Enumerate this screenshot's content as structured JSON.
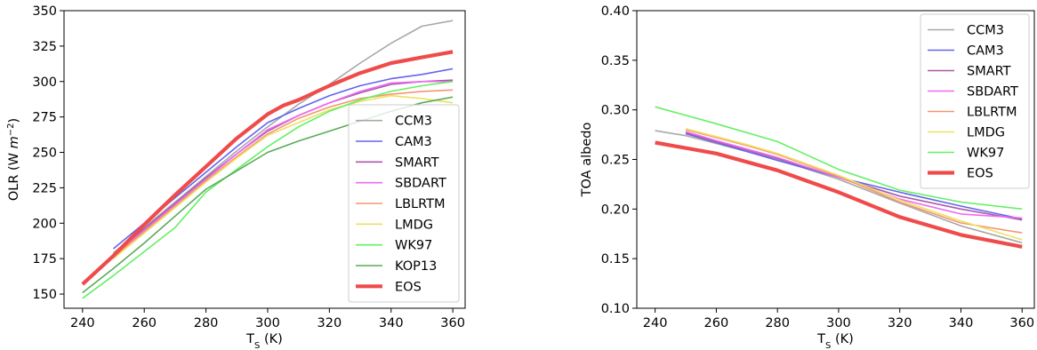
{
  "chart_data": [
    {
      "type": "line",
      "xlabel": "T",
      "xlabel_sub": "S",
      "xlabel_unit": " (K)",
      "ylabel": "OLR (W ",
      "ylabel_var": "m",
      "ylabel_sup": "−2",
      "ylabel_end": ")",
      "xlim": [
        234,
        364
      ],
      "ylim": [
        140,
        350
      ],
      "xticks": [
        240,
        260,
        280,
        300,
        320,
        340,
        360
      ],
      "yticks": [
        150,
        175,
        200,
        225,
        250,
        275,
        300,
        325,
        350
      ],
      "legend_position": "lower-right",
      "series": [
        {
          "name": "CCM3",
          "color": "#a8a8a8",
          "width": 1.6,
          "x": [
            250,
            260,
            270,
            280,
            290,
            300,
            310,
            320,
            330,
            340,
            350,
            360
          ],
          "y": [
            179,
            197,
            215,
            233,
            251,
            268,
            284,
            298,
            313,
            327,
            339,
            343
          ]
        },
        {
          "name": "CAM3",
          "color": "#6464f0",
          "width": 1.6,
          "x": [
            250,
            260,
            270,
            280,
            290,
            300,
            310,
            320,
            330,
            340,
            350,
            360
          ],
          "y": [
            182,
            200,
            218,
            236,
            254,
            271,
            281,
            290,
            297,
            302,
            305,
            309
          ]
        },
        {
          "name": "SMART",
          "color": "#a85aa8",
          "width": 1.6,
          "x": [
            250,
            260,
            270,
            280,
            290,
            300,
            310,
            320,
            330,
            340,
            350,
            360
          ],
          "y": [
            178,
            196,
            214,
            232,
            249,
            265,
            276,
            285,
            292,
            298,
            300,
            301
          ]
        },
        {
          "name": "SBDART",
          "color": "#f069f0",
          "width": 1.6,
          "x": [
            250,
            260,
            270,
            280,
            290,
            300,
            310,
            320,
            330,
            340,
            350,
            360
          ],
          "y": [
            177,
            195,
            213,
            231,
            249,
            266,
            276,
            285,
            293,
            299,
            300,
            300
          ]
        },
        {
          "name": "LBLRTM",
          "color": "#f5966e",
          "width": 1.6,
          "x": [
            250,
            260,
            270,
            280,
            290,
            300,
            310,
            320,
            330,
            340,
            350,
            360
          ],
          "y": [
            176,
            194,
            212,
            230,
            247,
            263,
            274,
            282,
            288,
            291,
            293,
            294
          ]
        },
        {
          "name": "LMDG",
          "color": "#ebe164",
          "width": 1.6,
          "x": [
            250,
            260,
            270,
            280,
            290,
            300,
            310,
            320,
            330,
            340,
            350,
            360
          ],
          "y": [
            175,
            193,
            211,
            229,
            246,
            262,
            271,
            280,
            286,
            290,
            288,
            285
          ]
        },
        {
          "name": "WK97",
          "color": "#64f064",
          "width": 1.6,
          "x": [
            240,
            250,
            260,
            270,
            280,
            290,
            300,
            310,
            320,
            330,
            340,
            350,
            360
          ],
          "y": [
            147,
            163,
            180,
            197,
            222,
            238,
            254,
            268,
            279,
            287,
            293,
            297,
            300
          ]
        },
        {
          "name": "KOP13",
          "color": "#5aaa5a",
          "width": 1.6,
          "x": [
            240,
            250,
            260,
            270,
            280,
            290,
            300,
            310,
            320,
            330,
            340,
            350,
            360
          ],
          "y": [
            151,
            168,
            186,
            205,
            224,
            237,
            250,
            258,
            265,
            272,
            279,
            285,
            289
          ]
        },
        {
          "name": "EOS",
          "color": "#f04b4b",
          "width": 4.2,
          "x": [
            240,
            250,
            260,
            270,
            280,
            290,
            300,
            305,
            310,
            320,
            330,
            340,
            350,
            360
          ],
          "y": [
            157,
            177,
            199,
            220,
            240,
            260,
            277,
            283,
            287,
            297,
            306,
            313,
            317,
            321
          ]
        }
      ]
    },
    {
      "type": "line",
      "xlabel": "T",
      "xlabel_sub": "S",
      "xlabel_unit": " (K)",
      "ylabel": "TOA albedo",
      "xlim": [
        234,
        364
      ],
      "ylim": [
        0.1,
        0.4
      ],
      "xticks": [
        240,
        260,
        280,
        300,
        320,
        340,
        360
      ],
      "yticks": [
        0.1,
        0.15,
        0.2,
        0.25,
        0.3,
        0.35,
        0.4
      ],
      "ytick_labels": [
        "0.10",
        "0.15",
        "0.20",
        "0.25",
        "0.30",
        "0.35",
        "0.40"
      ],
      "legend_position": "upper-right",
      "series": [
        {
          "name": "CCM3",
          "color": "#a8a8a8",
          "width": 1.6,
          "x": [
            240,
            250,
            260,
            280,
            300,
            320,
            340,
            360
          ],
          "y": [
            0.279,
            0.274,
            0.266,
            0.25,
            0.23,
            0.206,
            0.183,
            0.166
          ]
        },
        {
          "name": "CAM3",
          "color": "#6464f0",
          "width": 1.6,
          "x": [
            250,
            260,
            280,
            300,
            320,
            340,
            360
          ],
          "y": [
            0.276,
            0.267,
            0.249,
            0.232,
            0.217,
            0.203,
            0.19
          ]
        },
        {
          "name": "SMART",
          "color": "#a85aa8",
          "width": 1.6,
          "x": [
            250,
            260,
            280,
            300,
            320,
            340,
            360
          ],
          "y": [
            0.277,
            0.268,
            0.251,
            0.232,
            0.213,
            0.2,
            0.189
          ]
        },
        {
          "name": "SBDART",
          "color": "#f069f0",
          "width": 1.6,
          "x": [
            250,
            260,
            280,
            300,
            320,
            340,
            360
          ],
          "y": [
            0.278,
            0.269,
            0.252,
            0.232,
            0.21,
            0.195,
            0.191
          ]
        },
        {
          "name": "LBLRTM",
          "color": "#f5966e",
          "width": 1.6,
          "x": [
            250,
            260,
            270,
            280,
            300,
            320,
            340,
            360
          ],
          "y": [
            0.28,
            0.272,
            0.264,
            0.255,
            0.233,
            0.207,
            0.186,
            0.176
          ]
        },
        {
          "name": "LMDG",
          "color": "#ebe164",
          "width": 1.6,
          "x": [
            250,
            260,
            270,
            280,
            300,
            320,
            340,
            360
          ],
          "y": [
            0.281,
            0.273,
            0.265,
            0.256,
            0.234,
            0.209,
            0.188,
            0.169
          ]
        },
        {
          "name": "WK97",
          "color": "#64f064",
          "width": 1.6,
          "x": [
            240,
            260,
            280,
            300,
            320,
            340,
            360
          ],
          "y": [
            0.303,
            0.286,
            0.268,
            0.24,
            0.219,
            0.207,
            0.2
          ]
        },
        {
          "name": "EOS",
          "color": "#f04b4b",
          "width": 4.2,
          "x": [
            240,
            260,
            280,
            300,
            320,
            340,
            360
          ],
          "y": [
            0.267,
            0.256,
            0.239,
            0.217,
            0.192,
            0.174,
            0.162
          ]
        }
      ]
    }
  ]
}
